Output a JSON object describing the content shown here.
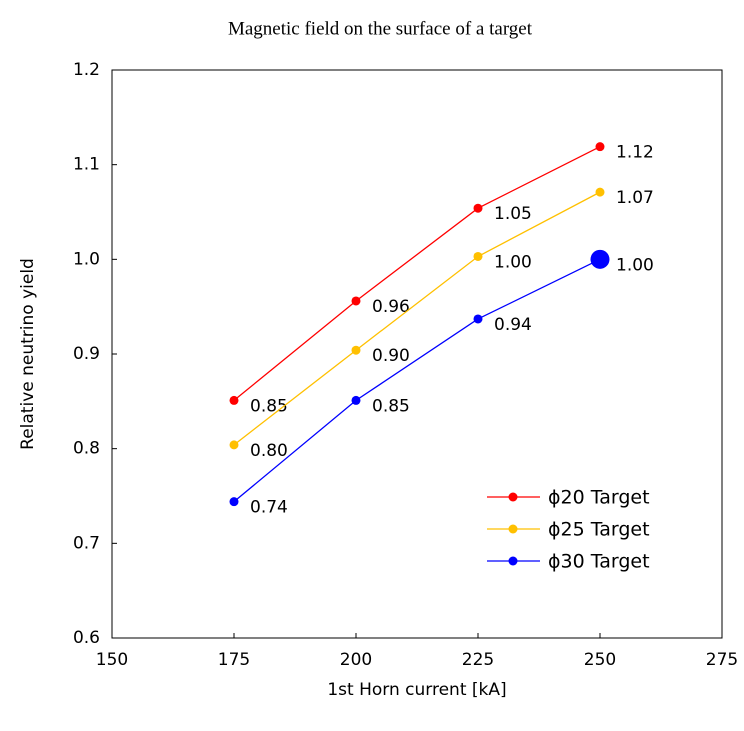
{
  "chart_data": {
    "type": "line",
    "title": "Magnetic field on the surface of a target",
    "xlabel": "1st Horn current [kA]",
    "ylabel": "Relative neutrino yield",
    "x": [
      175,
      200,
      225,
      250
    ],
    "series": [
      {
        "name": "ϕ20 Target",
        "color": "#ff0000",
        "values": [
          0.851,
          0.956,
          1.054,
          1.119
        ],
        "value_labels": [
          "0.85",
          "0.96",
          "1.05",
          "1.12"
        ]
      },
      {
        "name": "ϕ25 Target",
        "color": "#ffc000",
        "values": [
          0.804,
          0.904,
          1.003,
          1.071
        ],
        "value_labels": [
          "0.80",
          "0.90",
          "1.00",
          "1.07"
        ]
      },
      {
        "name": "ϕ30 Target",
        "color": "#0000ff",
        "values": [
          0.744,
          0.851,
          0.937,
          1.0
        ],
        "value_labels": [
          "0.74",
          "0.85",
          "0.94",
          "1.00"
        ]
      }
    ],
    "reference_point": {
      "x": 250,
      "y": 1.0,
      "color": "#0000ff"
    },
    "xlim": [
      150,
      275
    ],
    "xticks": [
      150,
      175,
      200,
      225,
      250,
      275
    ],
    "ylim": [
      0.6,
      1.2
    ],
    "yticks": [
      {
        "value": 0.6,
        "label": "0.6"
      },
      {
        "value": 0.7,
        "label": "0.7"
      },
      {
        "value": 0.8,
        "label": "0.8"
      },
      {
        "value": 0.9,
        "label": "0.9"
      },
      {
        "value": 1.0,
        "label": "1.0"
      },
      {
        "value": 1.1,
        "label": "1.1"
      },
      {
        "value": 1.2,
        "label": "1.2"
      }
    ],
    "grid": false,
    "legend": "lower right"
  }
}
